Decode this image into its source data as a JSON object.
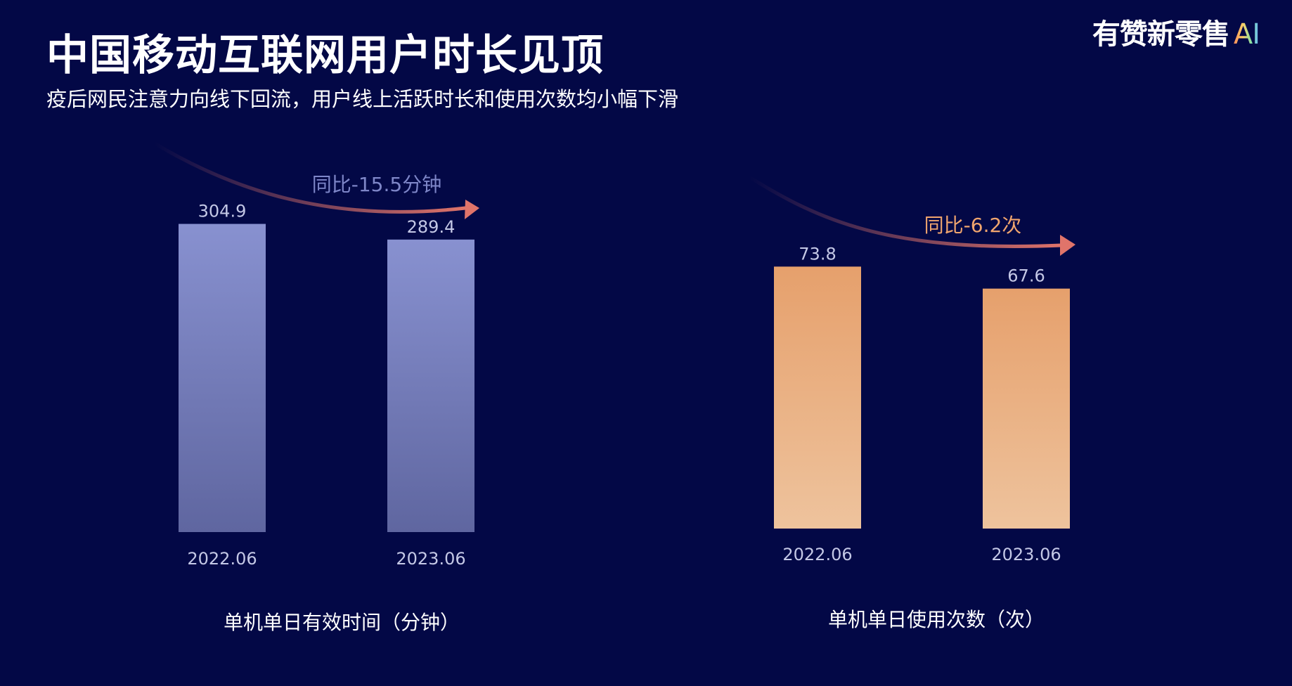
{
  "header": {
    "title": "中国移动互联网用户时长见顶",
    "subtitle": "疫后网民注意力向线下回流，用户线上活跃时长和使用次数均小幅下滑",
    "logo_text": "有赞新零售",
    "logo_ai": "AI"
  },
  "colors": {
    "background": "#030846",
    "purple_bar_top": "#8891d0",
    "purple_bar_bottom": "#5f66a0",
    "orange_bar_top": "#e6a06c",
    "orange_bar_bottom": "#eec39d",
    "arrow": "#e0746a",
    "yoy_purple": "#7e86c8",
    "yoy_orange": "#f0a56e",
    "tick_text": "#c4c8e6"
  },
  "chart_data": [
    {
      "type": "bar",
      "categories": [
        "2022.06",
        "2023.06"
      ],
      "values": [
        304.9,
        289.4
      ],
      "value_labels": [
        "304.9",
        "289.4"
      ],
      "title": "单机单日有效时间（分钟）",
      "annotation": "同比-15.5分钟"
    },
    {
      "type": "bar",
      "categories": [
        "2022.06",
        "2023.06"
      ],
      "values": [
        73.8,
        67.6
      ],
      "value_labels": [
        "73.8",
        "67.6"
      ],
      "title": "单机单日使用次数（次）",
      "annotation": "同比-6.2次"
    }
  ]
}
